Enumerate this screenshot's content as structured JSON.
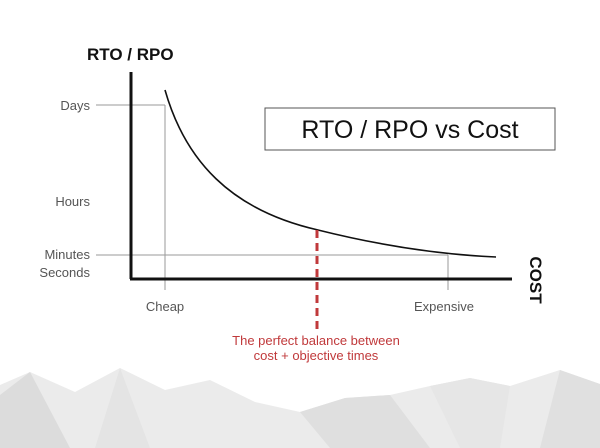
{
  "title": "RTO / RPO vs Cost",
  "y_axis": {
    "label": "RTO / RPO",
    "ticks": [
      "Days",
      "Hours",
      "Minutes",
      "Seconds"
    ]
  },
  "x_axis": {
    "label": "COST",
    "ticks": [
      "Cheap",
      "Expensive"
    ]
  },
  "annotation": {
    "line1": "The perfect balance between",
    "line2": "cost + objective times"
  },
  "colors": {
    "axis": "#111111",
    "curve": "#111111",
    "guide": "#9a9a9a",
    "highlight": "#c0393b",
    "mountains": "#e2e2e2"
  }
}
